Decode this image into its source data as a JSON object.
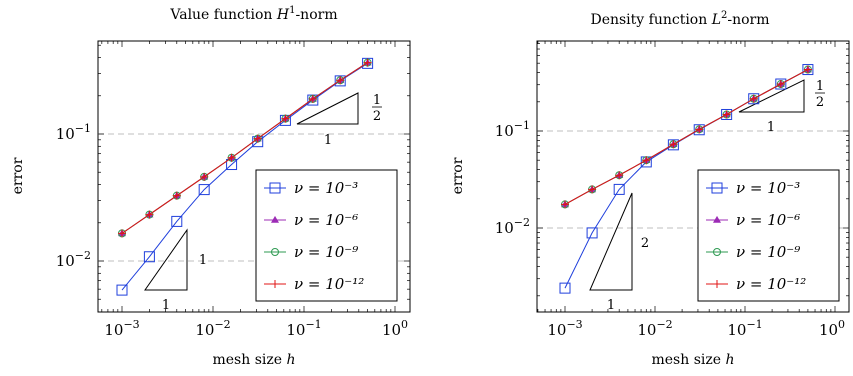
{
  "chart_data": [
    {
      "type": "line",
      "title": "Value function H¹-norm",
      "xlabel": "mesh size h",
      "ylabel": "error",
      "xscale": "log",
      "yscale": "log",
      "xlim": [
        0.0005,
        1.4
      ],
      "ylim": [
        0.0039,
        0.5
      ],
      "x_ticks": [
        "10⁻³",
        "10⁻²",
        "10⁻¹",
        "10⁰"
      ],
      "y_ticks": [
        "10⁻²",
        "10⁻¹"
      ],
      "grid": "horizontal dashed at major ticks",
      "legend_placement": "bottom-right",
      "x": [
        0.001,
        0.002,
        0.004,
        0.008,
        0.016,
        0.031,
        0.0625,
        0.125,
        0.25,
        0.5
      ],
      "series": [
        {
          "name": "ν = 10⁻³",
          "color": "#1f3fdc",
          "marker": "square",
          "values": [
            0.0059,
            0.0108,
            0.0205,
            0.0365,
            0.0575,
            0.087,
            0.128,
            0.185,
            0.262,
            0.36
          ]
        },
        {
          "name": "ν = 10⁻⁶",
          "color": "#9c2bb5",
          "marker": "triangle",
          "values": [
            0.0165,
            0.0232,
            0.0327,
            0.046,
            0.065,
            0.092,
            0.132,
            0.189,
            0.265,
            0.365
          ]
        },
        {
          "name": "ν = 10⁻⁹",
          "color": "#2e9a52",
          "marker": "circle",
          "values": [
            0.0165,
            0.0232,
            0.0327,
            0.046,
            0.065,
            0.092,
            0.132,
            0.189,
            0.265,
            0.365
          ]
        },
        {
          "name": "ν = 10⁻¹²",
          "color": "#e01414",
          "marker": "plus",
          "values": [
            0.0165,
            0.0232,
            0.0327,
            0.046,
            0.065,
            0.092,
            0.132,
            0.189,
            0.265,
            0.365
          ]
        }
      ],
      "slope_triangles": [
        {
          "run_label": "1",
          "rise_label": "1/2"
        },
        {
          "run_label": "1",
          "rise_label": "1"
        }
      ]
    },
    {
      "type": "line",
      "title": "Density function L²-norm",
      "xlabel": "mesh size h",
      "ylabel": "error",
      "xscale": "log",
      "yscale": "log",
      "xlim": [
        0.0005,
        1.4
      ],
      "ylim": [
        0.0016,
        0.6
      ],
      "x_ticks": [
        "10⁻³",
        "10⁻²",
        "10⁻¹",
        "10⁰"
      ],
      "y_ticks": [
        "10⁻²",
        "10⁻¹"
      ],
      "grid": "horizontal dashed at major ticks",
      "legend_placement": "bottom-right",
      "x": [
        0.001,
        0.002,
        0.004,
        0.008,
        0.016,
        0.031,
        0.0625,
        0.125,
        0.25,
        0.5
      ],
      "series": [
        {
          "name": "ν = 10⁻³",
          "color": "#1f3fdc",
          "marker": "square",
          "values": [
            0.0024,
            0.0089,
            0.025,
            0.048,
            0.072,
            0.103,
            0.148,
            0.215,
            0.305,
            0.43
          ]
        },
        {
          "name": "ν = 10⁻⁶",
          "color": "#9c2bb5",
          "marker": "triangle",
          "values": [
            0.0175,
            0.025,
            0.035,
            0.05,
            0.073,
            0.104,
            0.148,
            0.215,
            0.305,
            0.43
          ]
        },
        {
          "name": "ν = 10⁻⁹",
          "color": "#2e9a52",
          "marker": "circle",
          "values": [
            0.0175,
            0.025,
            0.035,
            0.05,
            0.073,
            0.104,
            0.148,
            0.215,
            0.305,
            0.43
          ]
        },
        {
          "name": "ν = 10⁻¹²",
          "color": "#e01414",
          "marker": "plus",
          "values": [
            0.0175,
            0.025,
            0.035,
            0.05,
            0.073,
            0.104,
            0.148,
            0.215,
            0.305,
            0.43
          ]
        }
      ],
      "slope_triangles": [
        {
          "run_label": "1",
          "rise_label": "1/2"
        },
        {
          "run_label": "1",
          "rise_label": "2"
        }
      ]
    }
  ]
}
